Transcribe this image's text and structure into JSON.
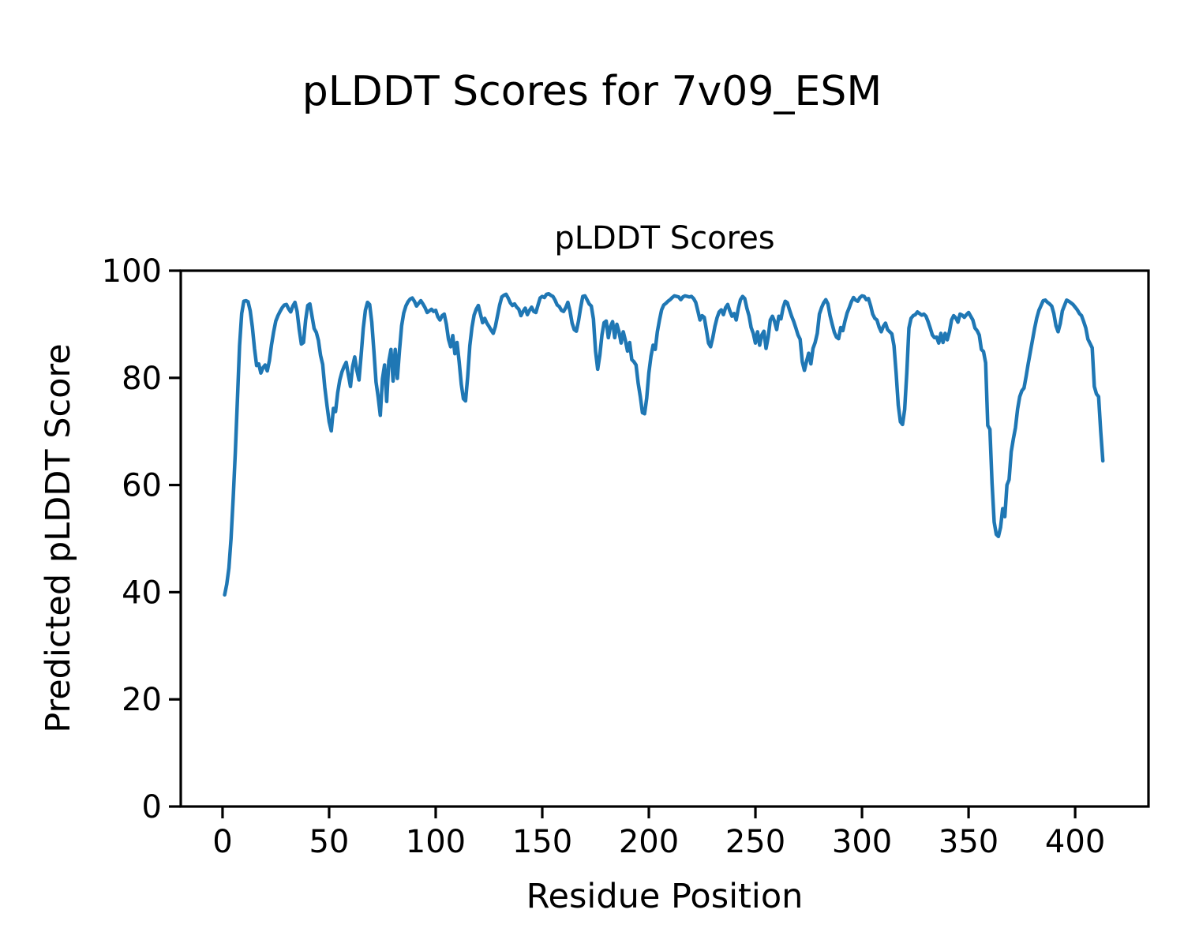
{
  "figure": {
    "suptitle": "pLDDT Scores for 7v09_ESM",
    "axes_title": "pLDDT Scores",
    "xlabel": "Residue Position",
    "ylabel": "Predicted pLDDT Score"
  },
  "chart_data": {
    "type": "line",
    "title": "pLDDT Scores",
    "suptitle": "pLDDT Scores for 7v09_ESM",
    "xlabel": "Residue Position",
    "ylabel": "Predicted pLDDT Score",
    "line_color": "#1f77b4",
    "grid": false,
    "x_start": 1,
    "x_step": 1,
    "xlim": [
      -19.6,
      434.4
    ],
    "ylim": [
      0,
      100
    ],
    "x_ticks": [
      0,
      50,
      100,
      150,
      200,
      250,
      300,
      350,
      400
    ],
    "y_ticks": [
      0,
      20,
      40,
      60,
      80,
      100
    ],
    "values": [
      39.5,
      41.5,
      44.5,
      50,
      57.5,
      66,
      76,
      86,
      92,
      94.3,
      94.4,
      94.2,
      92.5,
      89.5,
      85.5,
      82.3,
      82.6,
      80.9,
      81.9,
      82.4,
      81.3,
      83.2,
      86.2,
      88.6,
      90.6,
      91.6,
      92.4,
      93.1,
      93.6,
      93.7,
      92.9,
      92.3,
      93.4,
      94.1,
      92.4,
      89,
      86.3,
      86.6,
      90.8,
      93.5,
      93.8,
      91.5,
      89.2,
      88.5,
      87,
      84.2,
      82.5,
      78.2,
      74.8,
      71.8,
      70.1,
      74.3,
      73.7,
      77.2,
      79.6,
      81.1,
      82.1,
      82.9,
      80.6,
      78.4,
      82.1,
      83.9,
      81.4,
      79.6,
      84.2,
      89.2,
      92.6,
      94.1,
      93.7,
      90.4,
      85,
      79.2,
      76.4,
      73,
      79.8,
      82.4,
      75.6,
      83.1,
      85.3,
      79.4,
      85.3,
      79.9,
      85.1,
      89.7,
      92.1,
      93.4,
      94.2,
      94.7,
      94.9,
      94.3,
      93.4,
      93.9,
      94.4,
      93.8,
      93.1,
      92.2,
      92.5,
      92.8,
      92.4,
      92.6,
      91.4,
      90.8,
      91.6,
      91.9,
      90,
      87.2,
      85.8,
      87.9,
      84.5,
      86.6,
      83,
      78.8,
      76.1,
      75.7,
      80.2,
      86,
      89.4,
      91.7,
      92.8,
      93.5,
      91.9,
      90.3,
      91.1,
      90.2,
      89.6,
      88.9,
      88.3,
      89.6,
      91.6,
      93.6,
      95.1,
      95.4,
      95.6,
      94.9,
      94,
      93.5,
      93.8,
      93.2,
      92.8,
      91.6,
      92.4,
      93,
      91.8,
      92.6,
      93.2,
      92.4,
      92.2,
      93.6,
      94.9,
      95.2,
      95,
      95.6,
      95.7,
      95.4,
      95.2,
      94.5,
      93.6,
      93.3,
      92.6,
      92.4,
      93.1,
      94.1,
      92.5,
      90.2,
      89,
      88.7,
      90.6,
      93.1,
      95.2,
      95.3,
      94.6,
      93.8,
      93.4,
      91,
      85,
      81.6,
      84.2,
      88,
      90.3,
      90.6,
      87.5,
      89.6,
      90.5,
      87.5,
      90,
      88.6,
      86.5,
      88.6,
      87,
      85,
      86.6,
      83.4,
      83,
      82.4,
      79,
      76.5,
      73.5,
      73.3,
      76.2,
      80.9,
      84,
      86.1,
      85.3,
      88.6,
      90.8,
      92.7,
      93.6,
      93.9,
      94.3,
      94.6,
      95,
      95.3,
      95.2,
      95.1,
      94.6,
      95.1,
      95.3,
      95.2,
      95.1,
      95.2,
      94.8,
      94.1,
      92.5,
      90.8,
      91.6,
      91.3,
      89,
      86.5,
      85.8,
      87.5,
      89.6,
      91.2,
      92.3,
      92.7,
      91.8,
      93.1,
      93.7,
      92.5,
      91.5,
      92,
      90.8,
      93,
      94.6,
      95.2,
      94.8,
      93,
      91.6,
      89.4,
      88.3,
      86.5,
      88.6,
      86.1,
      88,
      88.7,
      85.5,
      87.6,
      90.8,
      91.5,
      90.5,
      89,
      91.5,
      91,
      93.1,
      94.3,
      94,
      92.7,
      91.5,
      90.5,
      89.3,
      88,
      87.2,
      83,
      81.4,
      83.1,
      84.6,
      82.6,
      85.5,
      86.6,
      88.3,
      91.9,
      93.1,
      94,
      94.6,
      93.8,
      91.6,
      90,
      88.5,
      87.6,
      87.3,
      89.4,
      88.8,
      90.6,
      92.1,
      93.1,
      94.2,
      95,
      94.5,
      94.3,
      95,
      95.3,
      95.2,
      94.6,
      94.8,
      93.5,
      91.9,
      91.1,
      90.8,
      89.5,
      88.6,
      89.6,
      90.2,
      89,
      88.6,
      88.2,
      86,
      80.9,
      74.9,
      71.8,
      71.3,
      74.1,
      80.9,
      89.3,
      91.1,
      91.6,
      91.8,
      92.3,
      92,
      91.7,
      91.9,
      91.5,
      90.5,
      89.3,
      88,
      87.5,
      87.6,
      86.5,
      88.3,
      86.6,
      88.3,
      87.1,
      88.6,
      90.8,
      91.6,
      91.2,
      90.4,
      91.9,
      91.7,
      91.3,
      91.8,
      92.2,
      91.5,
      90.8,
      89.3,
      88.8,
      88,
      85.3,
      84.9,
      82.8,
      71.1,
      70.4,
      60.4,
      53.1,
      50.8,
      50.4,
      52.1,
      55.6,
      54.1,
      60,
      61,
      66.2,
      68.6,
      70.7,
      74.2,
      76.5,
      77.6,
      78.1,
      80.3,
      82.7,
      84.9,
      87.1,
      89.3,
      91.2,
      92.6,
      93.5,
      94.4,
      94.5,
      94.1,
      93.8,
      93.4,
      92,
      89.7,
      88.6,
      90.1,
      92.5,
      93.5,
      94.5,
      94.3,
      94,
      93.7,
      93.2,
      92.7,
      92,
      91.6,
      90.5,
      89.3,
      87.2,
      86.4,
      85.6,
      78.4,
      77,
      76.5,
      70,
      64.5
    ]
  }
}
